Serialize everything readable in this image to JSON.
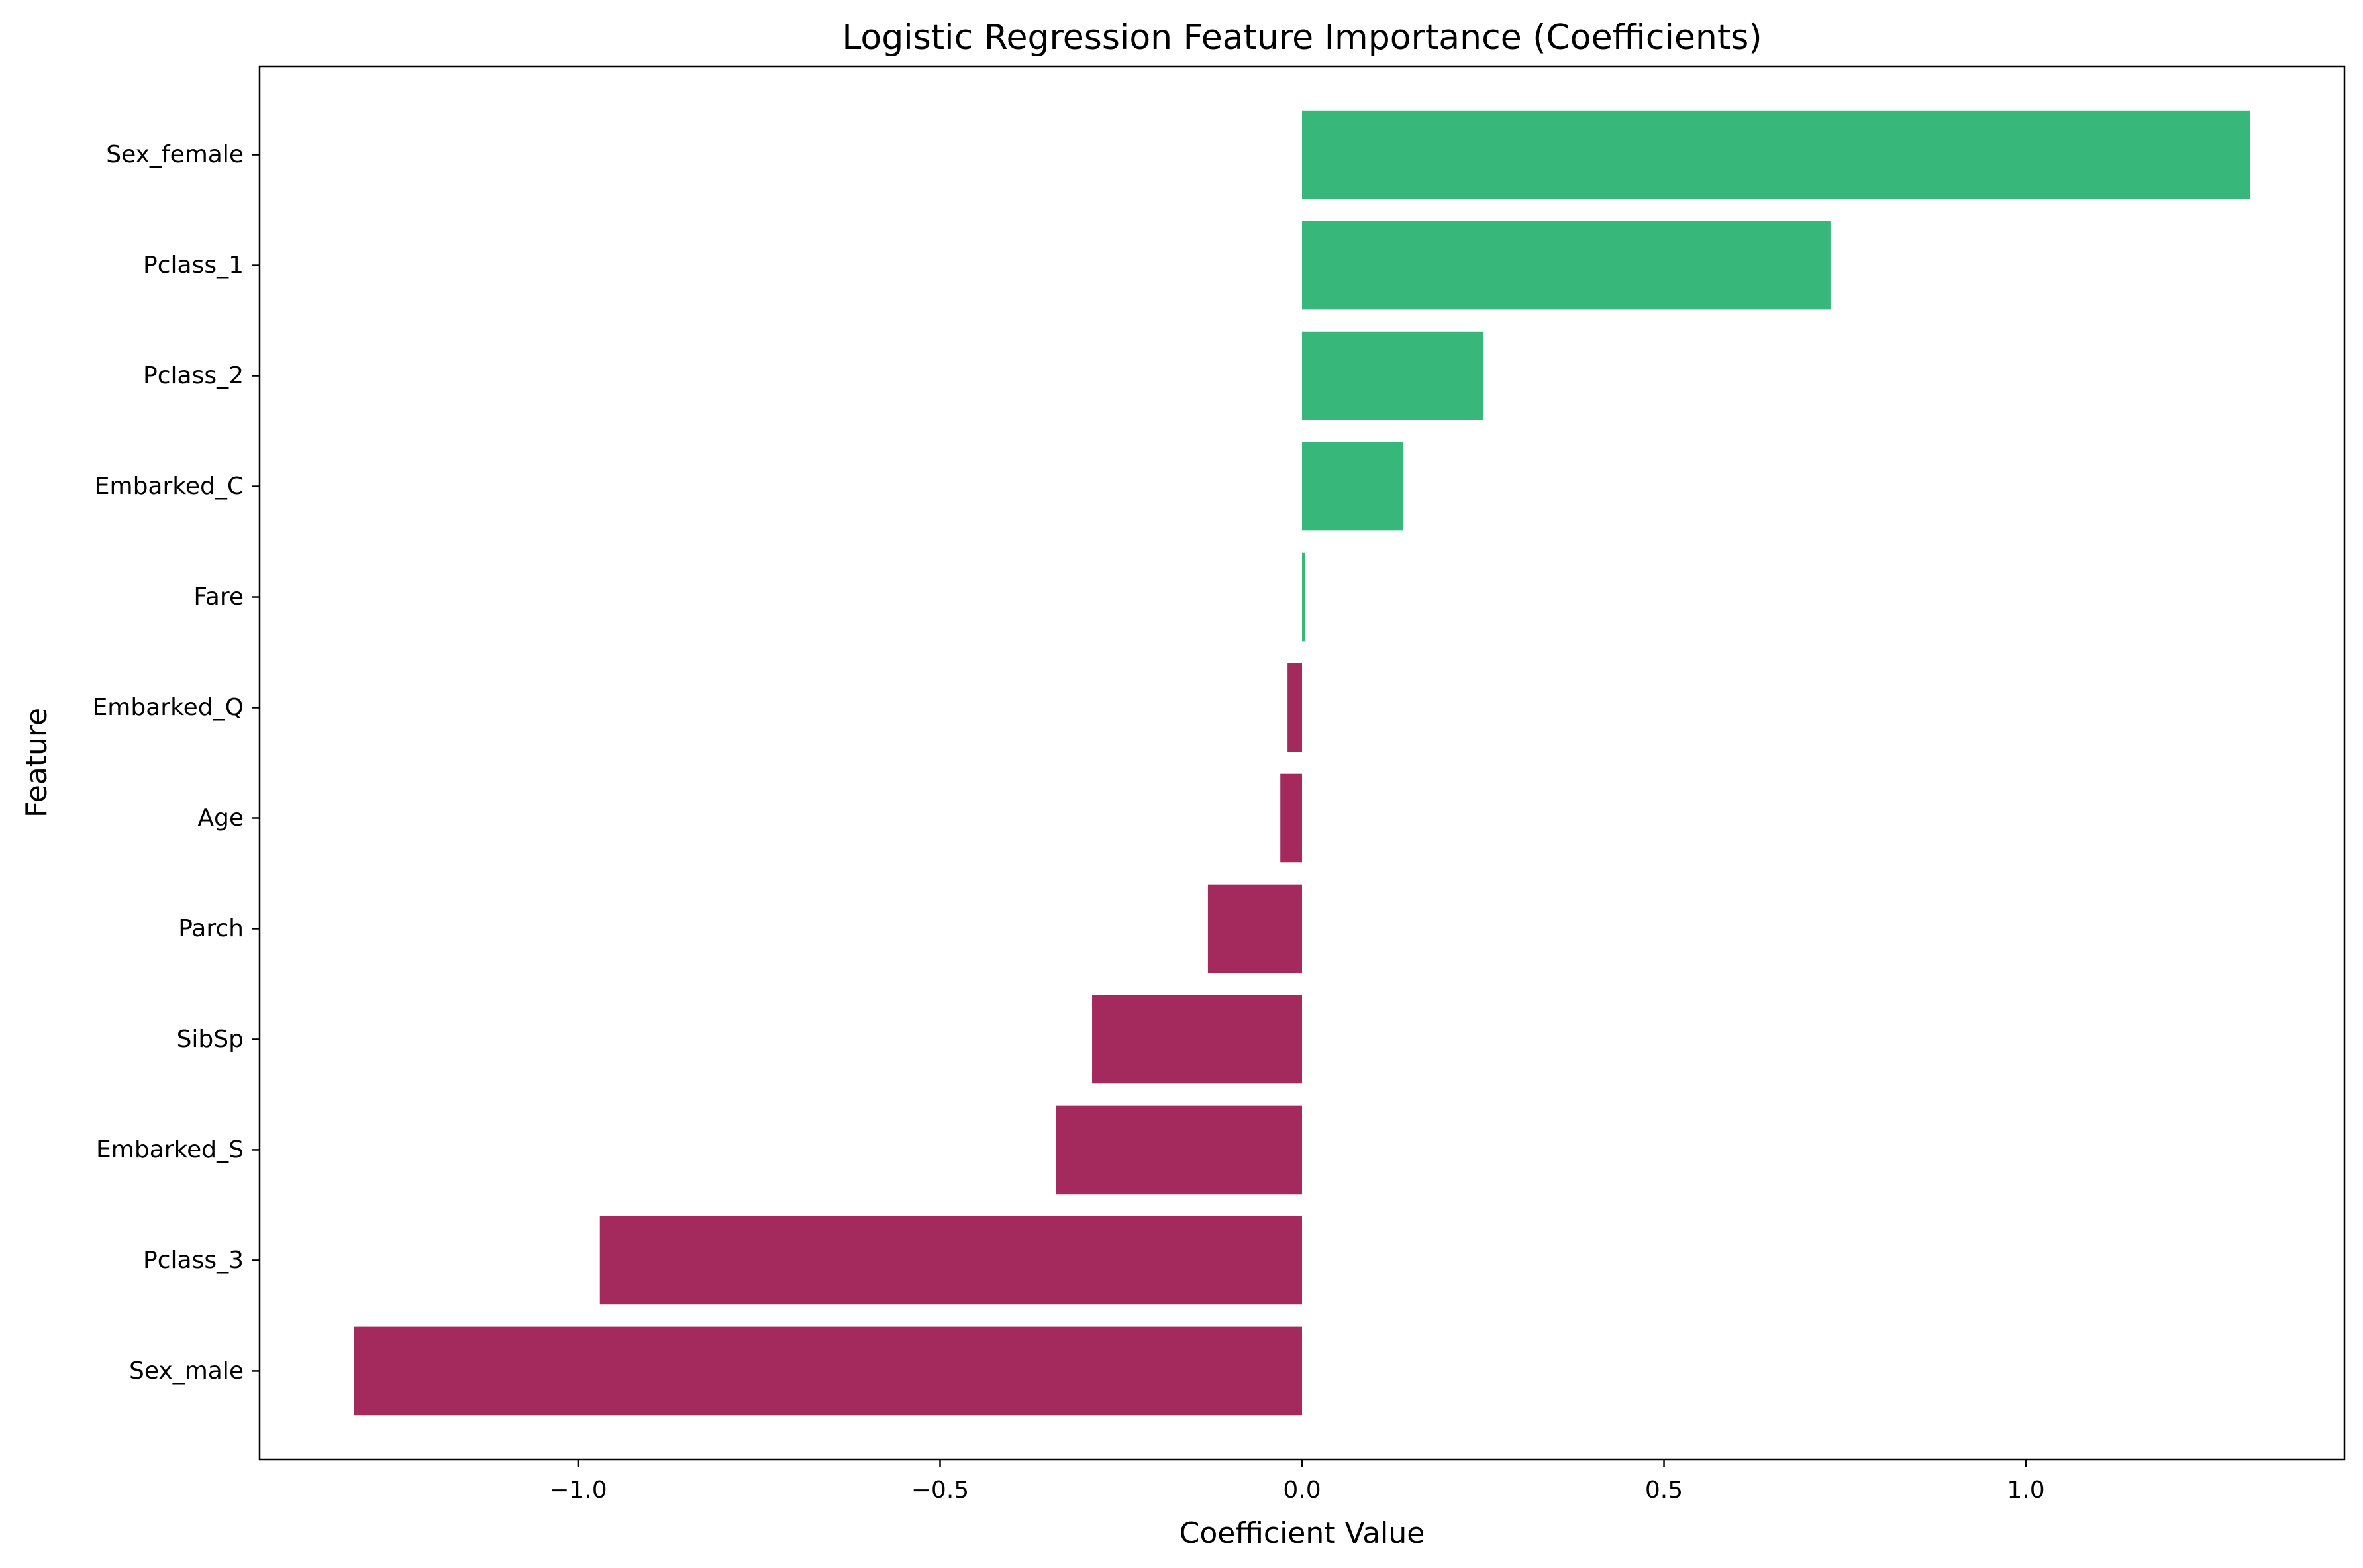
{
  "chart_data": {
    "type": "bar",
    "orientation": "horizontal",
    "title": "Logistic Regression Feature Importance (Coefficients)",
    "xlabel": "Coefficient Value",
    "ylabel": "Feature",
    "categories": [
      "Sex_female",
      "Pclass_1",
      "Pclass_2",
      "Embarked_C",
      "Fare",
      "Embarked_Q",
      "Age",
      "Parch",
      "SibSp",
      "Embarked_S",
      "Pclass_3",
      "Sex_male"
    ],
    "values": [
      1.31,
      0.73,
      0.25,
      0.14,
      0.004,
      -0.02,
      -0.03,
      -0.13,
      -0.29,
      -0.34,
      -0.97,
      -1.31
    ],
    "xlim": [
      -1.44,
      1.44
    ],
    "xticks": [
      -1.0,
      -0.5,
      0.0,
      0.5,
      1.0
    ],
    "xtick_labels": [
      "−1.0",
      "−0.5",
      "0.0",
      "0.5",
      "1.0"
    ],
    "grid": false,
    "legend": "none",
    "colors": {
      "positive": "#37b87a",
      "negative": "#a42a5e"
    }
  }
}
